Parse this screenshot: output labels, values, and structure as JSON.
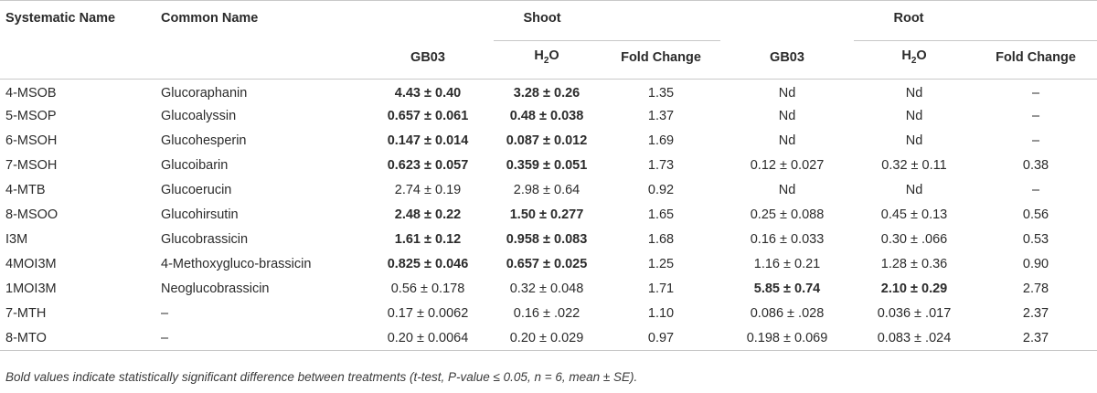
{
  "headers": {
    "systematic_name": "Systematic Name",
    "common_name": "Common Name",
    "shoot": "Shoot",
    "root": "Root",
    "gb03": "GB03",
    "h2o_main": "H",
    "h2o_sub": "2",
    "h2o_end": "O",
    "fold_change": "Fold Change"
  },
  "rows": [
    {
      "sys": "4-MSOB",
      "common": "Glucoraphanin",
      "s_gb03": "4.43 ± 0.40",
      "s_h2o": "3.28 ± 0.26",
      "s_fc": "1.35",
      "r_gb03": "Nd",
      "r_h2o": "Nd",
      "r_fc": "–",
      "bold_shoot": true,
      "bold_root": false
    },
    {
      "sys": "5-MSOP",
      "common": "Glucoalyssin",
      "s_gb03": "0.657 ± 0.061",
      "s_h2o": "0.48 ± 0.038",
      "s_fc": "1.37",
      "r_gb03": "Nd",
      "r_h2o": "Nd",
      "r_fc": "–",
      "bold_shoot": true,
      "bold_root": false
    },
    {
      "sys": "6-MSOH",
      "common": "Glucohesperin",
      "s_gb03": "0.147 ± 0.014",
      "s_h2o": "0.087 ± 0.012",
      "s_fc": "1.69",
      "r_gb03": "Nd",
      "r_h2o": "Nd",
      "r_fc": "–",
      "bold_shoot": true,
      "bold_root": false
    },
    {
      "sys": "7-MSOH",
      "common": "Glucoibarin",
      "s_gb03": "0.623 ± 0.057",
      "s_h2o": "0.359 ± 0.051",
      "s_fc": "1.73",
      "r_gb03": "0.12 ± 0.027",
      "r_h2o": "0.32 ± 0.11",
      "r_fc": "0.38",
      "bold_shoot": true,
      "bold_root": false
    },
    {
      "sys": "4-MTB",
      "common": "Glucoerucin",
      "s_gb03": "2.74 ± 0.19",
      "s_h2o": "2.98 ± 0.64",
      "s_fc": "0.92",
      "r_gb03": "Nd",
      "r_h2o": "Nd",
      "r_fc": "–",
      "bold_shoot": false,
      "bold_root": false
    },
    {
      "sys": "8-MSOO",
      "common": "Glucohirsutin",
      "s_gb03": "2.48 ± 0.22",
      "s_h2o": "1.50 ± 0.277",
      "s_fc": "1.65",
      "r_gb03": "0.25 ± 0.088",
      "r_h2o": "0.45 ± 0.13",
      "r_fc": "0.56",
      "bold_shoot": true,
      "bold_root": false
    },
    {
      "sys": "I3M",
      "common": "Glucobrassicin",
      "s_gb03": "1.61 ± 0.12",
      "s_h2o": "0.958 ± 0.083",
      "s_fc": "1.68",
      "r_gb03": "0.16 ± 0.033",
      "r_h2o": "0.30 ± .066",
      "r_fc": "0.53",
      "bold_shoot": true,
      "bold_root": false
    },
    {
      "sys": "4MOI3M",
      "common": "4-Methoxygluco-brassicin",
      "s_gb03": "0.825 ± 0.046",
      "s_h2o": "0.657 ± 0.025",
      "s_fc": "1.25",
      "r_gb03": "1.16 ± 0.21",
      "r_h2o": "1.28 ± 0.36",
      "r_fc": "0.90",
      "bold_shoot": true,
      "bold_root": false
    },
    {
      "sys": "1MOI3M",
      "common": "Neoglucobrassicin",
      "s_gb03": "0.56 ± 0.178",
      "s_h2o": "0.32 ± 0.048",
      "s_fc": "1.71",
      "r_gb03": "5.85 ± 0.74",
      "r_h2o": "2.10 ± 0.29",
      "r_fc": "2.78",
      "bold_shoot": false,
      "bold_root": true
    },
    {
      "sys": "7-MTH",
      "common": "–",
      "s_gb03": "0.17 ± 0.0062",
      "s_h2o": "0.16 ± .022",
      "s_fc": "1.10",
      "r_gb03": "0.086 ± .028",
      "r_h2o": "0.036 ± .017",
      "r_fc": "2.37",
      "bold_shoot": false,
      "bold_root": false
    },
    {
      "sys": "8-MTO",
      "common": "–",
      "s_gb03": "0.20 ± 0.0064",
      "s_h2o": "0.20 ± 0.029",
      "s_fc": "0.97",
      "r_gb03": "0.198 ± 0.069",
      "r_h2o": "0.083 ± .024",
      "r_fc": "2.37",
      "bold_shoot": false,
      "bold_root": false
    }
  ],
  "footnote": "Bold values indicate statistically significant difference between treatments (t-test, P-value ≤ 0.05, n = 6, mean ± SE)."
}
